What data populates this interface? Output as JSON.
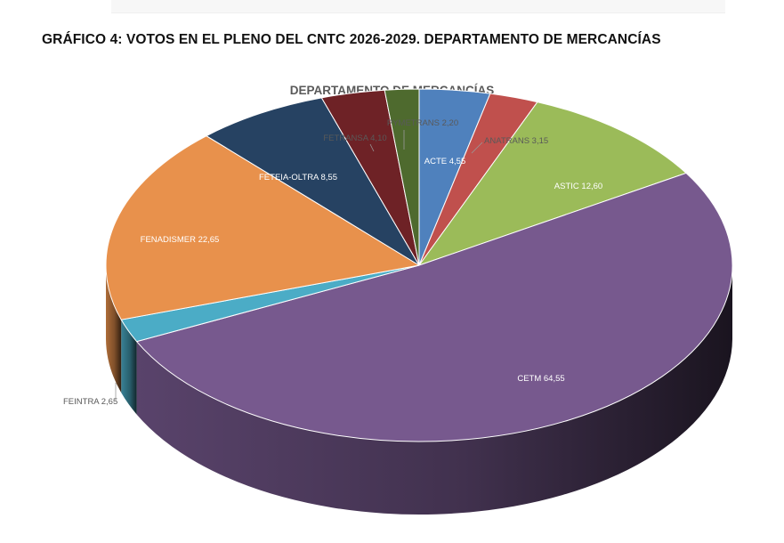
{
  "document": {
    "heading": "GRÁFICO 4: VOTOS EN EL PLENO DEL CNTC 2026-2029. DEPARTAMENTO DE MERCANCÍAS"
  },
  "chart_data": {
    "type": "pie",
    "title": "DEPARTAMENTO DE MERCANCÍAS",
    "slices": [
      {
        "name": "ACTE",
        "value": 4.55,
        "label": "ACTE 4,55",
        "color": "#4F81BD"
      },
      {
        "name": "ANATRANS",
        "value": 3.15,
        "label": "ANATRANS 3,15",
        "color": "#C0504D"
      },
      {
        "name": "ASTIC",
        "value": 12.6,
        "label": "ASTIC 12,60",
        "color": "#9BBB59"
      },
      {
        "name": "CETM",
        "value": 64.55,
        "label": "CETM 64,55",
        "color": "#77598E"
      },
      {
        "name": "FEINTRA",
        "value": 2.65,
        "label": "FEINTRA 2,65",
        "color": "#4BACC6"
      },
      {
        "name": "FENADISMER",
        "value": 22.65,
        "label": "FENADISMER 22,65",
        "color": "#E8914C"
      },
      {
        "name": "FETEIA-OLTRA",
        "value": 8.55,
        "label": "FETEIA-OLTRA 8,55",
        "color": "#264262"
      },
      {
        "name": "FETRANSA",
        "value": 4.1,
        "label": "FETRANSA 4,10",
        "color": "#6E2226"
      },
      {
        "name": "PYMETRANS",
        "value": 2.2,
        "label": "PYMETRANS 2,20",
        "color": "#4E6A2E"
      }
    ],
    "legend": "none"
  }
}
